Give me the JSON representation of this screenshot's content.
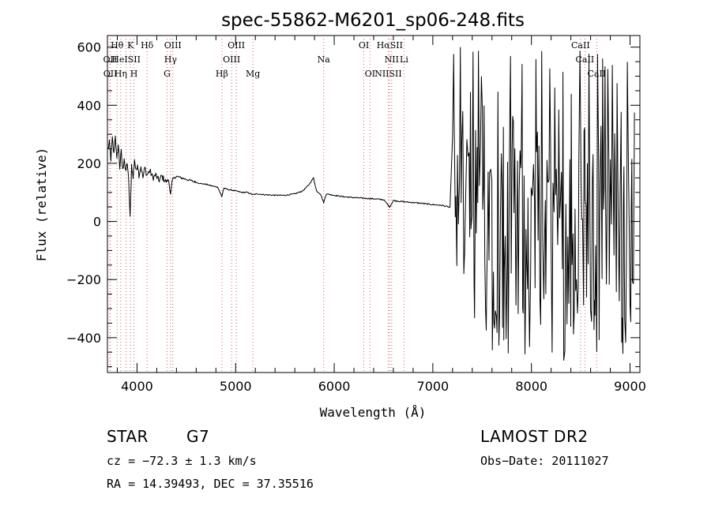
{
  "chart_data": {
    "type": "line",
    "title": "spec-55862-M6201_sp06-248.fits",
    "xlabel": "Wavelength (Å)",
    "ylabel": "Flux (relative)",
    "xlim": [
      3700,
      9100
    ],
    "ylim": [
      -520,
      640
    ],
    "xticks": [
      4000,
      5000,
      6000,
      7000,
      8000,
      9000
    ],
    "yticks": [
      -400,
      -200,
      0,
      200,
      400,
      600
    ],
    "grid": false,
    "line_color": "#000000",
    "marker_color": "#d06060",
    "series": [
      {
        "values_smooth_region": [
          [
            3705,
            250
          ],
          [
            3720,
            270
          ],
          [
            3735,
            215
          ],
          [
            3750,
            285
          ],
          [
            3765,
            230
          ],
          [
            3780,
            300
          ],
          [
            3795,
            210
          ],
          [
            3810,
            265
          ],
          [
            3825,
            185
          ],
          [
            3840,
            240
          ],
          [
            3855,
            175
          ],
          [
            3870,
            220
          ],
          [
            3885,
            165
          ],
          [
            3900,
            205
          ],
          [
            3915,
            140
          ],
          [
            3930,
            10
          ],
          [
            3945,
            195
          ],
          [
            3960,
            150
          ],
          [
            3975,
            215
          ],
          [
            3990,
            170
          ],
          [
            4005,
            200
          ],
          [
            4020,
            160
          ],
          [
            4040,
            190
          ],
          [
            4060,
            150
          ],
          [
            4080,
            185
          ],
          [
            4100,
            160
          ],
          [
            4130,
            175
          ],
          [
            4160,
            150
          ],
          [
            4190,
            160
          ],
          [
            4220,
            140
          ],
          [
            4250,
            155
          ],
          [
            4290,
            138
          ],
          [
            4320,
            142
          ],
          [
            4340,
            95
          ],
          [
            4360,
            145
          ],
          [
            4400,
            155
          ],
          [
            4450,
            150
          ],
          [
            4500,
            145
          ],
          [
            4550,
            140
          ],
          [
            4600,
            135
          ],
          [
            4650,
            130
          ],
          [
            4700,
            128
          ],
          [
            4760,
            122
          ],
          [
            4820,
            118
          ],
          [
            4860,
            85
          ],
          [
            4880,
            115
          ],
          [
            4920,
            110
          ],
          [
            4960,
            108
          ],
          [
            5000,
            105
          ],
          [
            5060,
            100
          ],
          [
            5120,
            100
          ],
          [
            5175,
            92
          ],
          [
            5220,
            95
          ],
          [
            5300,
            92
          ],
          [
            5400,
            90
          ],
          [
            5500,
            90
          ],
          [
            5600,
            95
          ],
          [
            5680,
            105
          ],
          [
            5740,
            125
          ],
          [
            5790,
            150
          ],
          [
            5820,
            105
          ],
          [
            5860,
            95
          ],
          [
            5893,
            65
          ],
          [
            5920,
            95
          ],
          [
            6000,
            90
          ],
          [
            6100,
            85
          ],
          [
            6200,
            82
          ],
          [
            6300,
            80
          ],
          [
            6400,
            78
          ],
          [
            6500,
            75
          ],
          [
            6563,
            50
          ],
          [
            6600,
            72
          ],
          [
            6700,
            68
          ],
          [
            6800,
            65
          ],
          [
            6900,
            62
          ],
          [
            7000,
            58
          ],
          [
            7100,
            55
          ],
          [
            7180,
            48
          ]
        ],
        "noisy_region": {
          "x_range": [
            7200,
            9050
          ],
          "y_range": [
            -510,
            630
          ]
        }
      }
    ],
    "lines": [
      {
        "label": "Hθ",
        "x": 3798,
        "row": 0
      },
      {
        "label": "K",
        "x": 3934,
        "row": 0
      },
      {
        "label": "Hδ",
        "x": 4102,
        "row": 0
      },
      {
        "label": "OIII",
        "x": 4363,
        "row": 0
      },
      {
        "label": "OIII",
        "x": 5007,
        "row": 0
      },
      {
        "label": "OI",
        "x": 6300,
        "row": 0
      },
      {
        "label": "HαSII",
        "x": 6563,
        "row": 0
      },
      {
        "label": "CaII",
        "x": 8498,
        "row": 0
      },
      {
        "label": "OII",
        "x": 3727,
        "row": 1
      },
      {
        "label": "HeISII",
        "x": 3889,
        "row": 1
      },
      {
        "label": "Hγ",
        "x": 4340,
        "row": 1
      },
      {
        "label": "OIII",
        "x": 4959,
        "row": 1
      },
      {
        "label": "Na",
        "x": 5893,
        "row": 1
      },
      {
        "label": "NII",
        "x": 6583,
        "row": 1
      },
      {
        "label": "Li",
        "x": 6708,
        "row": 1
      },
      {
        "label": "CaII",
        "x": 8542,
        "row": 1
      },
      {
        "label": "OII",
        "x": 3729,
        "row": 2
      },
      {
        "label": "Hη",
        "x": 3835,
        "row": 2
      },
      {
        "label": "H",
        "x": 3969,
        "row": 2
      },
      {
        "label": "G",
        "x": 4305,
        "row": 2
      },
      {
        "label": "Hβ",
        "x": 4861,
        "row": 2
      },
      {
        "label": "Mg",
        "x": 5175,
        "row": 2
      },
      {
        "label": "OI",
        "x": 6363,
        "row": 2
      },
      {
        "label": "NIISII",
        "x": 6548,
        "row": 2
      },
      {
        "label": "CaII",
        "x": 8662,
        "row": 2
      }
    ]
  },
  "info": {
    "object_class": "STAR",
    "subclass": "G7",
    "survey": "LAMOST DR2",
    "cz": "cz = −72.3 ± 1.3 km/s",
    "obs_date": "Obs−Date: 20111027",
    "coords": "RA =  14.39493, DEC =  37.35516"
  }
}
